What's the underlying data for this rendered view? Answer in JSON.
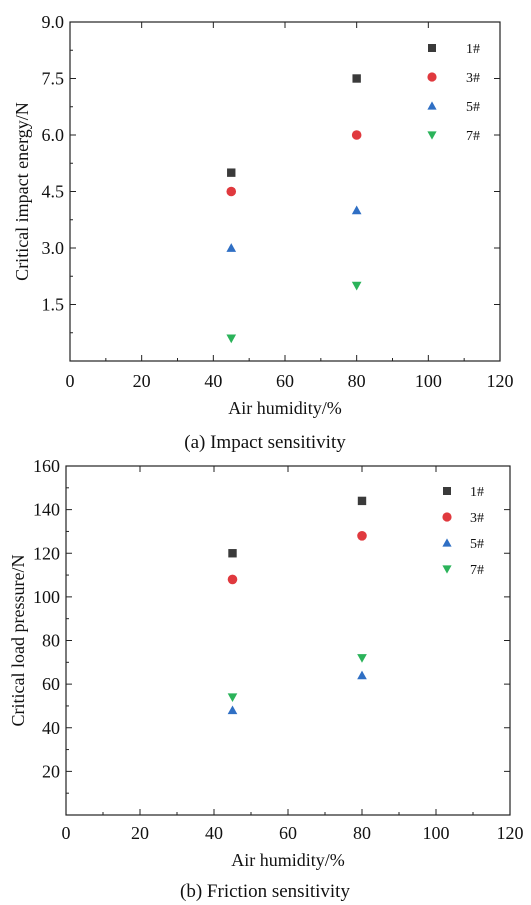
{
  "chart_data": [
    {
      "type": "scatter",
      "caption": "(a) Impact sensitivity",
      "xlabel": "Air humidity/%",
      "ylabel": "Critical impact energy/N",
      "xlim": [
        0,
        120
      ],
      "ylim": [
        0,
        9.0
      ],
      "xticks": [
        "0",
        "20",
        "40",
        "60",
        "80",
        "100",
        "120"
      ],
      "yticks": [
        "1.5",
        "3.0",
        "4.5",
        "6.0",
        "7.5",
        "9.0"
      ],
      "ytick_values": [
        1.5,
        3.0,
        4.5,
        6.0,
        7.5,
        9.0
      ],
      "xtick_values": [
        0,
        20,
        40,
        60,
        80,
        100,
        120
      ],
      "grid": false,
      "legend_position": "top-right",
      "x": [
        45,
        80
      ],
      "series": [
        {
          "name": "1#",
          "marker": "square",
          "color": "#3a3a3a",
          "values": [
            5.0,
            7.5
          ]
        },
        {
          "name": "3#",
          "marker": "circle",
          "color": "#e0393e",
          "values": [
            4.5,
            6.0
          ]
        },
        {
          "name": "5#",
          "marker": "triangle-up",
          "color": "#2f6fc4",
          "values": [
            3.0,
            4.0
          ]
        },
        {
          "name": "7#",
          "marker": "triangle-down",
          "color": "#2bb35a",
          "values": [
            0.6,
            2.0
          ]
        }
      ]
    },
    {
      "type": "scatter",
      "caption": "(b) Friction sensitivity",
      "xlabel": "Air humidity/%",
      "ylabel": "Critical load pressure/N",
      "xlim": [
        0,
        120
      ],
      "ylim": [
        0,
        160
      ],
      "xticks": [
        "0",
        "20",
        "40",
        "60",
        "80",
        "100",
        "120"
      ],
      "yticks": [
        "20",
        "40",
        "60",
        "80",
        "100",
        "120",
        "140",
        "160"
      ],
      "ytick_values": [
        20,
        40,
        60,
        80,
        100,
        120,
        140,
        160
      ],
      "xtick_values": [
        0,
        20,
        40,
        60,
        80,
        100,
        120
      ],
      "grid": false,
      "legend_position": "top-right",
      "x": [
        45,
        80
      ],
      "series": [
        {
          "name": "1#",
          "marker": "square",
          "color": "#3a3a3a",
          "values": [
            120,
            144
          ]
        },
        {
          "name": "3#",
          "marker": "circle",
          "color": "#e0393e",
          "values": [
            108,
            128
          ]
        },
        {
          "name": "5#",
          "marker": "triangle-up",
          "color": "#2f6fc4",
          "values": [
            48,
            64
          ]
        },
        {
          "name": "7#",
          "marker": "triangle-down",
          "color": "#2bb35a",
          "values": [
            54,
            72
          ]
        }
      ]
    }
  ]
}
